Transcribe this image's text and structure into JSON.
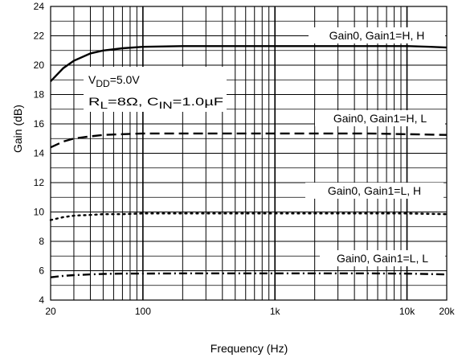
{
  "chart_data": {
    "type": "line",
    "title": "",
    "xlabel": "Frequency (Hz)",
    "ylabel": "Gain (dB)",
    "xscale": "log",
    "xlim": [
      20,
      20000
    ],
    "ylim": [
      4,
      24
    ],
    "xticks": [
      20,
      100,
      1000,
      10000,
      20000
    ],
    "xtick_labels": [
      "20",
      "100",
      "1k",
      "10k",
      "20k"
    ],
    "yticks": [
      4,
      6,
      8,
      10,
      12,
      14,
      16,
      18,
      20,
      22,
      24
    ],
    "ytick_labels": [
      "4",
      "6",
      "8",
      "10",
      "12",
      "14",
      "16",
      "18",
      "20",
      "22",
      "24"
    ],
    "grid": true,
    "conditions": {
      "vdd": {
        "main": "V",
        "sub": "DD",
        "rest": "=5.0V"
      },
      "rl": {
        "main": "R",
        "sub": "L",
        "rest": "=8Ω, C"
      },
      "cin": {
        "sub": "IN",
        "rest": "=1.0µF"
      }
    },
    "series": [
      {
        "name": "Gain0, Gain1=H, H",
        "style": "solid",
        "x": [
          20,
          25,
          30,
          40,
          50,
          70,
          100,
          200,
          500,
          1000,
          2000,
          5000,
          10000,
          15000,
          20000
        ],
        "y": [
          18.9,
          19.8,
          20.3,
          20.8,
          21.0,
          21.15,
          21.25,
          21.3,
          21.3,
          21.3,
          21.3,
          21.3,
          21.3,
          21.25,
          21.2
        ]
      },
      {
        "name": "Gain0, Gain1=H, L",
        "style": "dashed",
        "x": [
          20,
          25,
          30,
          40,
          50,
          70,
          100,
          200,
          500,
          1000,
          2000,
          5000,
          10000,
          20000
        ],
        "y": [
          14.4,
          14.8,
          15.0,
          15.15,
          15.25,
          15.3,
          15.35,
          15.35,
          15.35,
          15.35,
          15.35,
          15.35,
          15.3,
          15.25
        ]
      },
      {
        "name": "Gain0, Gain1=L, H",
        "style": "dotted",
        "x": [
          20,
          25,
          30,
          40,
          50,
          70,
          100,
          200,
          500,
          1000,
          2000,
          5000,
          10000,
          20000
        ],
        "y": [
          9.45,
          9.65,
          9.75,
          9.8,
          9.85,
          9.85,
          9.9,
          9.9,
          9.9,
          9.9,
          9.9,
          9.9,
          9.9,
          9.85
        ]
      },
      {
        "name": "Gain0, Gain1=L, L",
        "style": "dashdot",
        "x": [
          20,
          25,
          30,
          40,
          50,
          70,
          100,
          200,
          500,
          1000,
          2000,
          5000,
          10000,
          20000
        ],
        "y": [
          5.55,
          5.65,
          5.7,
          5.75,
          5.78,
          5.8,
          5.8,
          5.82,
          5.82,
          5.82,
          5.82,
          5.82,
          5.8,
          5.75
        ]
      }
    ]
  }
}
